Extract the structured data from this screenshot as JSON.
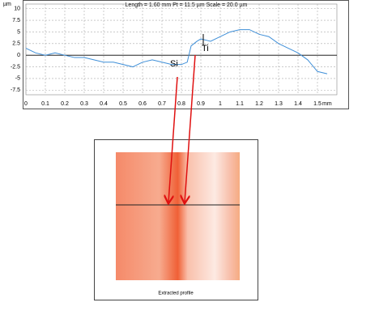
{
  "chart_data": {
    "type": "line",
    "title": "Length = 1.60 mm  Pt = 11.5 µm  Scale = 20.0 µm",
    "y_label": "µm",
    "x_unit": "mm",
    "x": [
      0,
      0.05,
      0.1,
      0.15,
      0.2,
      0.25,
      0.3,
      0.35,
      0.4,
      0.45,
      0.5,
      0.55,
      0.6,
      0.65,
      0.7,
      0.75,
      0.8,
      0.83,
      0.85,
      0.88,
      0.9,
      0.95,
      1.0,
      1.05,
      1.1,
      1.15,
      1.2,
      1.25,
      1.3,
      1.35,
      1.4,
      1.45,
      1.5,
      1.55
    ],
    "series": [
      {
        "color": "#3f8fd8",
        "values": [
          1.5,
          0.5,
          0,
          0.5,
          0,
          -0.5,
          -0.5,
          -1,
          -1.5,
          -1.5,
          -2,
          -2.5,
          -1.5,
          -1,
          -1.5,
          -2,
          -2,
          -1.5,
          2,
          3,
          3.5,
          3,
          4,
          5,
          5.5,
          5.5,
          4.5,
          4,
          2.5,
          1.5,
          0.5,
          -1,
          -3.5,
          -4
        ]
      }
    ],
    "xlim": [
      0,
      1.6
    ],
    "ylim": [
      -8.5,
      11
    ],
    "xticks": [
      0,
      0.1,
      0.2,
      0.3,
      0.4,
      0.5,
      0.6,
      0.7,
      0.8,
      0.9,
      1,
      1.1,
      1.2,
      1.3,
      1.4,
      1.5
    ],
    "yticks": [
      10,
      7.5,
      5,
      2.5,
      0,
      -2.5,
      -5,
      -7.5
    ],
    "grid": true,
    "annotations": [
      "Si",
      "Ti"
    ],
    "image_caption": "Extracted profile"
  }
}
